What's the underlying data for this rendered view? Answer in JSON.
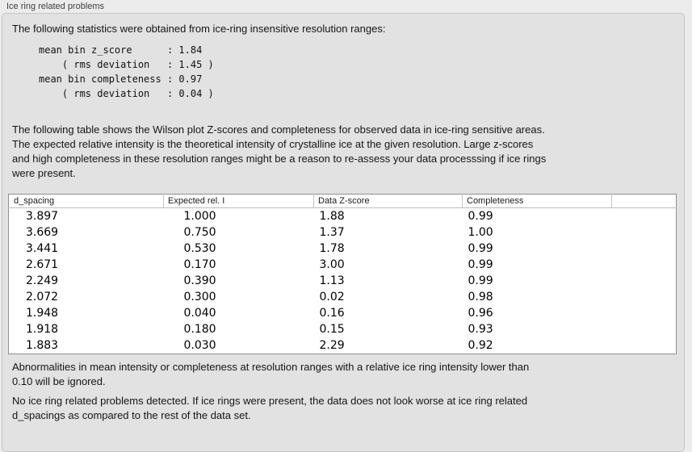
{
  "panel": {
    "title": "Ice ring related problems"
  },
  "intro": "The following statistics were obtained from ice-ring insensitive resolution ranges:",
  "stats_block": "mean bin z_score      : 1.84\n    ( rms deviation   : 1.45 )\nmean bin completeness : 0.97\n    ( rms deviation   : 0.04 )",
  "description": "The following table shows the Wilson plot Z-scores and completeness for observed data in ice-ring sensitive areas.\nThe expected relative intensity is the theoretical intensity of crystalline ice at the given resolution. Large z-scores\nand high completeness in these resolution ranges might be a reason to re-assess your data processsing if ice rings\nwere present.",
  "table": {
    "columns": [
      "d_spacing",
      "Expected rel. I",
      "Data Z-score",
      "Completeness",
      ""
    ],
    "rows": [
      [
        "3.897",
        "1.000",
        "1.88",
        "0.99"
      ],
      [
        "3.669",
        "0.750",
        "1.37",
        "1.00"
      ],
      [
        "3.441",
        "0.530",
        "1.78",
        "0.99"
      ],
      [
        "2.671",
        "0.170",
        "3.00",
        "0.99"
      ],
      [
        "2.249",
        "0.390",
        "1.13",
        "0.99"
      ],
      [
        "2.072",
        "0.300",
        "0.02",
        "0.98"
      ],
      [
        "1.948",
        "0.040",
        "0.16",
        "0.96"
      ],
      [
        "1.918",
        "0.180",
        "0.15",
        "0.93"
      ],
      [
        "1.883",
        "0.030",
        "2.29",
        "0.92"
      ]
    ]
  },
  "note": "Abnormalities in mean intensity or completeness at resolution ranges with a relative ice ring intensity lower than\n0.10 will be ignored.",
  "conclusion": "No ice ring related problems detected. If ice rings were present, the data does not look worse at ice ring related\nd_spacings as compared to the rest of the data set.",
  "colors": {
    "page_bg": "#ececec",
    "panel_bg": "#e2e2e2",
    "panel_border": "#c6c6c6",
    "table_bg": "#ffffff",
    "table_border": "#8f8f8f",
    "header_divider": "#c4c4c4",
    "text": "#151515"
  }
}
